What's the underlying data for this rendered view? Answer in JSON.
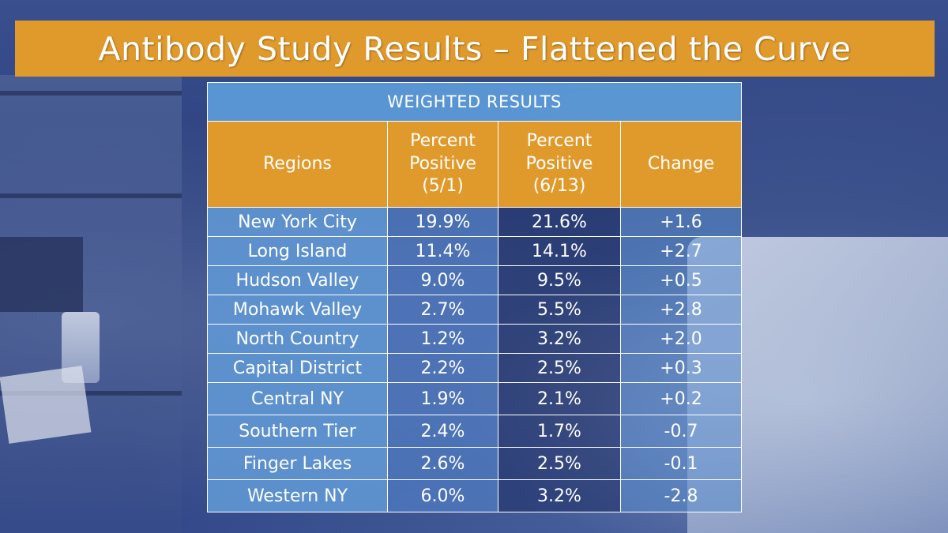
{
  "slide": {
    "title": "Antibody Study Results – Flattened the Curve"
  },
  "table": {
    "caption": "WEIGHTED RESULTS",
    "headers": {
      "regions": "Regions",
      "pct_5_1_line1": "Percent",
      "pct_5_1_line2": "Positive",
      "pct_5_1_line3": "(5/1)",
      "pct_6_13_line1": "Percent",
      "pct_6_13_line2": "Positive",
      "pct_6_13_line3": "(6/13)",
      "change": "Change"
    },
    "rows": [
      {
        "region": "New York City",
        "may1": "19.9%",
        "jun13": "21.6%",
        "change": "+1.6"
      },
      {
        "region": "Long Island",
        "may1": "11.4%",
        "jun13": "14.1%",
        "change": "+2.7"
      },
      {
        "region": "Hudson Valley",
        "may1": "9.0%",
        "jun13": "9.5%",
        "change": "+0.5"
      },
      {
        "region": "Mohawk Valley",
        "may1": "2.7%",
        "jun13": "5.5%",
        "change": "+2.8"
      },
      {
        "region": "North Country",
        "may1": "1.2%",
        "jun13": "3.2%",
        "change": "+2.0"
      },
      {
        "region": "Capital District",
        "may1": "2.2%",
        "jun13": "2.5%",
        "change": "+0.3"
      },
      {
        "region": "Central NY",
        "may1": "1.9%",
        "jun13": "2.1%",
        "change": "+0.2"
      },
      {
        "region": "Southern Tier",
        "may1": "2.4%",
        "jun13": "1.7%",
        "change": "-0.7"
      },
      {
        "region": "Finger Lakes",
        "may1": "2.6%",
        "jun13": "2.5%",
        "change": "-0.1"
      },
      {
        "region": "Western NY",
        "may1": "6.0%",
        "jun13": "3.2%",
        "change": "-2.8"
      }
    ]
  },
  "colors": {
    "title_bar": "#e09a2c",
    "header_orange": "#e09a2c",
    "region_blue": "#5f96d2",
    "text": "#ffffff"
  }
}
